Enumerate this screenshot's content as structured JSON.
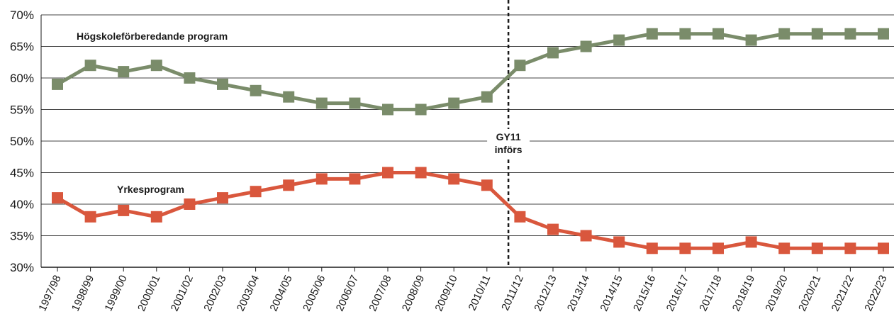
{
  "chart_data": {
    "type": "line",
    "title": "",
    "xlabel": "",
    "ylabel": "",
    "ylim": [
      30,
      70
    ],
    "y_ticks": [
      30,
      35,
      40,
      45,
      50,
      55,
      60,
      65,
      70
    ],
    "y_tick_labels": [
      "30%",
      "35%",
      "40%",
      "45%",
      "50%",
      "55%",
      "60%",
      "65%",
      "70%"
    ],
    "grid": "horizontal",
    "categories": [
      "1997/98",
      "1998/99",
      "1999/00",
      "2000/01",
      "2001/02",
      "2002/03",
      "2003/04",
      "2004/05",
      "2005/06",
      "2006/07",
      "2007/08",
      "2008/09",
      "2009/10",
      "2010/11",
      "2011/12",
      "2012/13",
      "2013/14",
      "2014/15",
      "2015/16",
      "2016/17",
      "2017/18",
      "2018/19",
      "2019/20",
      "2020/21",
      "2021/22",
      "2022/23"
    ],
    "series": [
      {
        "name": "Högskoleförberedande program",
        "color": "#7a8c6a",
        "values": [
          59,
          62,
          61,
          62,
          60,
          59,
          58,
          57,
          56,
          56,
          55,
          55,
          56,
          57,
          62,
          64,
          65,
          66,
          67,
          67,
          67,
          66,
          67,
          67,
          67,
          67
        ]
      },
      {
        "name": "Yrkesprogram",
        "color": "#d9573d",
        "values": [
          41,
          38,
          39,
          38,
          40,
          41,
          42,
          43,
          44,
          44,
          45,
          45,
          44,
          43,
          38,
          36,
          35,
          34,
          33,
          33,
          33,
          34,
          33,
          33,
          33,
          33
        ]
      }
    ],
    "annotation": {
      "category": "2011/12",
      "lines": [
        "GY11",
        "införs"
      ]
    }
  }
}
